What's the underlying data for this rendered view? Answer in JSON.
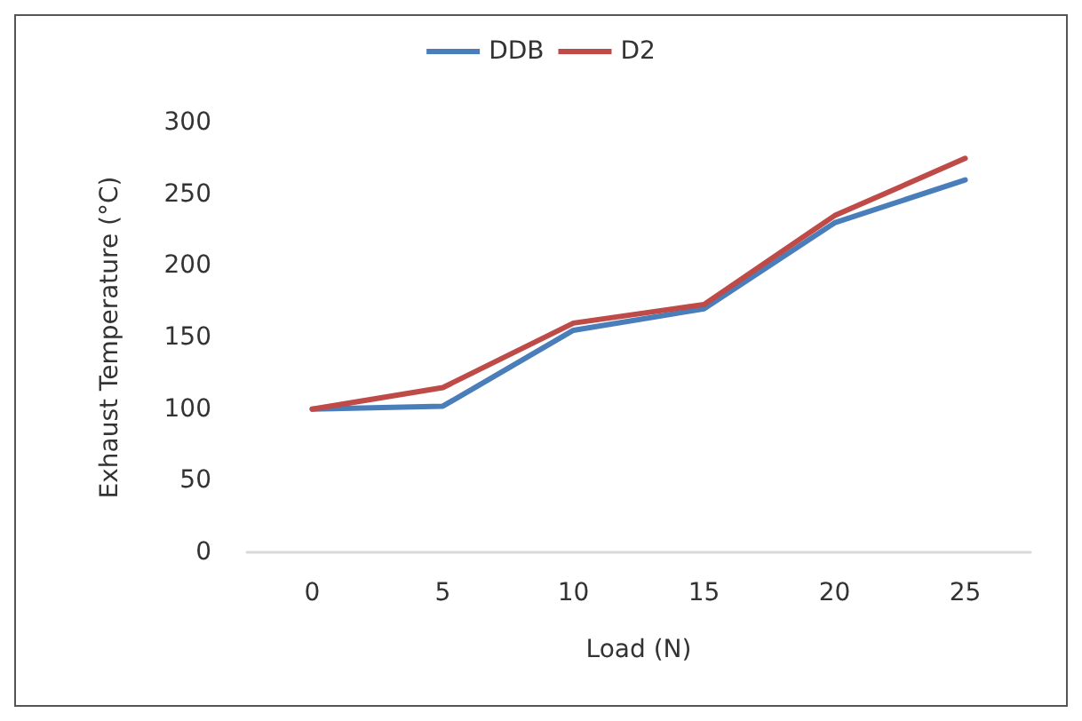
{
  "chart_data": {
    "type": "line",
    "xlabel": "Load (N)",
    "ylabel": "Exhaust Temperature (°C)",
    "categories": [
      "0",
      "5",
      "10",
      "15",
      "20",
      "25"
    ],
    "series": [
      {
        "name": "DDB",
        "color": "#4a7ebb",
        "values": [
          100,
          102,
          155,
          170,
          230,
          260
        ]
      },
      {
        "name": "D2",
        "color": "#be4b48",
        "values": [
          100,
          115,
          160,
          173,
          235,
          275
        ]
      }
    ],
    "ylim": [
      0,
      300
    ],
    "yticks": [
      0,
      50,
      100,
      150,
      200,
      250,
      300
    ],
    "grid": false,
    "legend": "top",
    "marker": "none",
    "line_style": "solid"
  }
}
